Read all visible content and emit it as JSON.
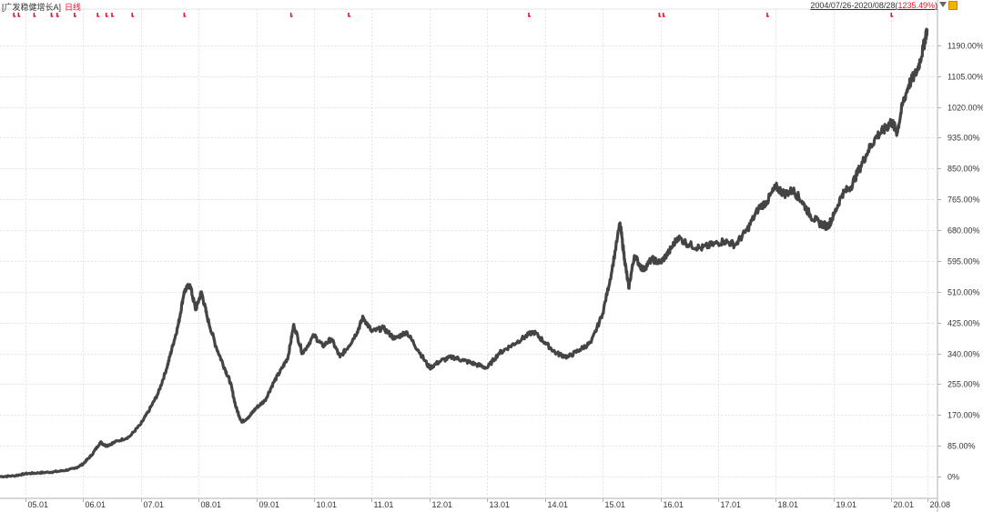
{
  "header": {
    "fund_name": "[广发稳健增长A]",
    "period": "日线",
    "range_prefix": "2004/07/26-2020/08/28(",
    "range_return": "1235.49%",
    "range_suffix": ")",
    "dropdown_icon": "triangle-down-icon",
    "settings_icon": "lock-icon"
  },
  "colors": {
    "line": "#444444",
    "grid": "#e4e4e4",
    "accent": "#e8132c",
    "axis": "#b0b0b0"
  },
  "chart_data": {
    "type": "line",
    "title": "",
    "xlabel": "",
    "ylabel": "",
    "ylim": [
      -60,
      1290
    ],
    "xlim": [
      2004.56,
      2020.8
    ],
    "y_ticks": [
      0,
      85,
      170,
      255,
      340,
      425,
      510,
      595,
      680,
      765,
      850,
      935,
      1020,
      1105,
      1190
    ],
    "y_tick_labels": [
      "0%",
      "85.00%",
      "170.00%",
      "255.00%",
      "340.00%",
      "425.00%",
      "510.00%",
      "595.00%",
      "680.00%",
      "765.00%",
      "850.00%",
      "935.00%",
      "1020.00%",
      "1105.00%",
      "1190.00%"
    ],
    "x_ticks": [
      2005.0,
      2006.0,
      2007.0,
      2008.0,
      2009.0,
      2010.0,
      2011.0,
      2012.0,
      2013.0,
      2014.0,
      2015.0,
      2016.0,
      2017.0,
      2018.0,
      2019.0,
      2020.0,
      2020.62
    ],
    "x_tick_labels": [
      "05.01",
      "06.01",
      "07.01",
      "08.01",
      "09.01",
      "10.01",
      "11.01",
      "12.01",
      "13.01",
      "14.01",
      "15.01",
      "16.01",
      "17.01",
      "18.01",
      "19.01",
      "20.01",
      "20.08"
    ],
    "grid": true,
    "series": [
      {
        "x": [
          2004.56,
          2004.8,
          2005.0,
          2005.2,
          2005.4,
          2005.6,
          2005.85,
          2006.0,
          2006.15,
          2006.3,
          2006.4,
          2006.55,
          2006.8,
          2007.0,
          2007.15,
          2007.3,
          2007.45,
          2007.55,
          2007.65,
          2007.75,
          2007.85,
          2007.95,
          2008.05,
          2008.15,
          2008.3,
          2008.45,
          2008.55,
          2008.65,
          2008.75,
          2008.9,
          2009.0,
          2009.15,
          2009.3,
          2009.45,
          2009.55,
          2009.65,
          2009.8,
          2010.0,
          2010.15,
          2010.3,
          2010.45,
          2010.6,
          2010.75,
          2010.85,
          2011.0,
          2011.2,
          2011.4,
          2011.6,
          2011.8,
          2012.0,
          2012.2,
          2012.4,
          2012.6,
          2012.8,
          2013.0,
          2013.2,
          2013.4,
          2013.6,
          2013.8,
          2014.0,
          2014.2,
          2014.4,
          2014.6,
          2014.8,
          2015.0,
          2015.15,
          2015.3,
          2015.38,
          2015.45,
          2015.55,
          2015.7,
          2015.85,
          2016.0,
          2016.15,
          2016.3,
          2016.5,
          2016.7,
          2016.9,
          2017.1,
          2017.3,
          2017.5,
          2017.7,
          2017.85,
          2018.0,
          2018.15,
          2018.3,
          2018.45,
          2018.6,
          2018.75,
          2018.9,
          2019.0,
          2019.15,
          2019.3,
          2019.45,
          2019.6,
          2019.75,
          2019.9,
          2020.0,
          2020.1,
          2020.2,
          2020.3,
          2020.45,
          2020.55,
          2020.62
        ],
        "values": [
          0,
          2,
          8,
          10,
          12,
          15,
          22,
          35,
          60,
          95,
          85,
          95,
          110,
          145,
          185,
          230,
          300,
          360,
          420,
          510,
          530,
          460,
          510,
          440,
          360,
          300,
          260,
          190,
          150,
          170,
          190,
          210,
          260,
          300,
          330,
          420,
          340,
          390,
          360,
          380,
          330,
          360,
          400,
          440,
          400,
          410,
          380,
          400,
          350,
          300,
          320,
          330,
          320,
          310,
          300,
          340,
          360,
          380,
          400,
          370,
          340,
          330,
          350,
          370,
          450,
          560,
          700,
          600,
          520,
          610,
          570,
          600,
          590,
          620,
          660,
          640,
          630,
          640,
          650,
          640,
          680,
          740,
          760,
          800,
          780,
          790,
          760,
          720,
          700,
          690,
          720,
          780,
          800,
          850,
          900,
          940,
          960,
          980,
          950,
          1030,
          1080,
          1120,
          1180,
          1235
        ]
      }
    ],
    "event_marks": [
      2004.8,
      2004.88,
      2005.15,
      2005.45,
      2005.55,
      2005.85,
      2006.25,
      2006.4,
      2006.5,
      2006.85,
      2007.75,
      2009.6,
      2010.6,
      2013.72,
      2015.98,
      2016.05,
      2017.85,
      2020.0
    ]
  }
}
